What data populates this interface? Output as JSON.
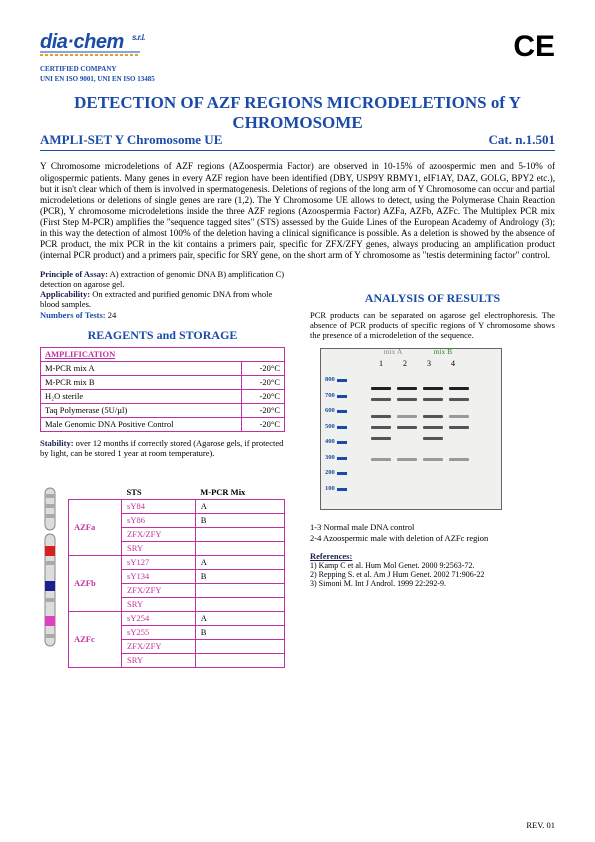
{
  "header": {
    "logo_main": "dia·chem",
    "logo_srl": "s.r.l.",
    "cert1": "CERTIFIED COMPANY",
    "cert2": "UNI EN ISO 9001, UNI EN ISO 13485",
    "ce": "CE"
  },
  "title": "DETECTION OF AZF REGIONS MICRODELETIONS of Y CHROMOSOME",
  "subtitle_left": "AMPLI-SET Y Chromosome UE",
  "subtitle_right": "Cat. n.1.501",
  "intro": "Y Chromosome microdeletions of AZF regions (AZoospermia Factor) are observed in 10-15% of azoospermic men and 5-10% of oligospermic patients. Many genes in every AZF region have been identified (DBY, USP9Y RBMY1, eIF1AY, DAZ, GOLG, BPY2 etc.), but it isn't clear which of them is involved in spermatogenesis. Deletions of regions of the long arm of Y Chromosome can occur and partial microdeletions or deletions of single genes are rare (1,2). The Y Chromosome UE allows to detect, using the Polymerase Chain Reaction (PCR), Y chromosome microdeletions inside the three AZF regions (Azoospermia Factor) AZFa, AZFb, AZFc. The Multiplex PCR mix (First Step M-PCR) amplifies the \"sequence tagged sites\" (STS) assessed by the Guide Lines of the European Academy of Andrology (3); in this way the detection of almost 100% of the deletion having a clinical significance is possible. As a deletion is showed by the absence of PCR product, the mix PCR in the kit contains a primers pair, specific for ZFX/ZFY genes, always producing an amplification product (internal PCR product) and a primers pair, specific for SRY gene, on the short arm of Y chromosome as \"testis determining factor\" control.",
  "principle_label": "Principle of Assay:",
  "principle_text": " A) extraction of genomic DNA B) amplification C) detection on agarose gel.",
  "applicability_label": "Applicability:",
  "applicability_text": " On extracted and purified genomic DNA from whole blood samples.",
  "tests_label": "Numbers of Tests:",
  "tests_value": " 24",
  "reagents_heading": "REAGENTS and STORAGE",
  "reagents_header": "AMPLIFICATION",
  "reagents": {
    "rows": [
      {
        "name": "M-PCR mix A",
        "temp": "-20°C"
      },
      {
        "name": "M-PCR mix B",
        "temp": "-20°C"
      },
      {
        "name": "H₂O sterile",
        "temp": "-20°C"
      },
      {
        "name": "Taq Polymerase (5U/µl)",
        "temp": "-20°C"
      },
      {
        "name": "Male Genomic DNA Positive Control",
        "temp": "-20°C"
      }
    ]
  },
  "stability_label": "Stability:",
  "stability_text": " over 12 months if correctly stored (Agarose gels, if protected by light, can be stored 1 year at room temperature).",
  "sts_head_sts": "STS",
  "sts_head_mix": "M-PCR Mix",
  "sts": {
    "groups": [
      {
        "region": "AZFa",
        "rows": [
          {
            "sts": "sY84",
            "mix": "A"
          },
          {
            "sts": "sY86",
            "mix": "B"
          },
          {
            "sts": "ZFX/ZFY",
            "mix": ""
          },
          {
            "sts": "SRY",
            "mix": ""
          }
        ]
      },
      {
        "region": "AZFb",
        "rows": [
          {
            "sts": "sY127",
            "mix": "A"
          },
          {
            "sts": "sY134",
            "mix": "B"
          },
          {
            "sts": "ZFX/ZFY",
            "mix": ""
          },
          {
            "sts": "SRY",
            "mix": ""
          }
        ]
      },
      {
        "region": "AZFc",
        "rows": [
          {
            "sts": "sY254",
            "mix": "A"
          },
          {
            "sts": "sY255",
            "mix": "B"
          },
          {
            "sts": "ZFX/ZFY",
            "mix": ""
          },
          {
            "sts": "SRY",
            "mix": ""
          }
        ]
      }
    ]
  },
  "analysis_heading": "ANALYSIS OF RESULTS",
  "analysis_text": "PCR products can be separated on agarose gel electrophoresis. The absence of PCR products of specific regions of Y chromosome shows the presence of a microdeletion of the sequence.",
  "gel": {
    "mixA": "mix A",
    "mixB": "mix B",
    "lanes": [
      "1",
      "2",
      "3",
      "4"
    ],
    "ladder": [
      "800",
      "700",
      "600",
      "500",
      "400",
      "300",
      "200",
      "100"
    ]
  },
  "legend1": "1-3  Normal male DNA control",
  "legend2": "2-4  Azoospermic male with deletion of AZFc region",
  "refs_heading": "References:",
  "refs": [
    "1) Kamp C et al. Hum Mol Genet. 2000 9:2563-72.",
    "2) Repping S. et al. Am J Hum Genet. 2002 71:906-22",
    "3) Simoni M. Int J Androl. 1999 22:292-9."
  ],
  "footer": "REV. 01",
  "colors": {
    "blue": "#1a4ba8",
    "magenta": "#c030a0",
    "red": "#d92020",
    "darkblue": "#1a2090",
    "pink": "#e040c0"
  }
}
